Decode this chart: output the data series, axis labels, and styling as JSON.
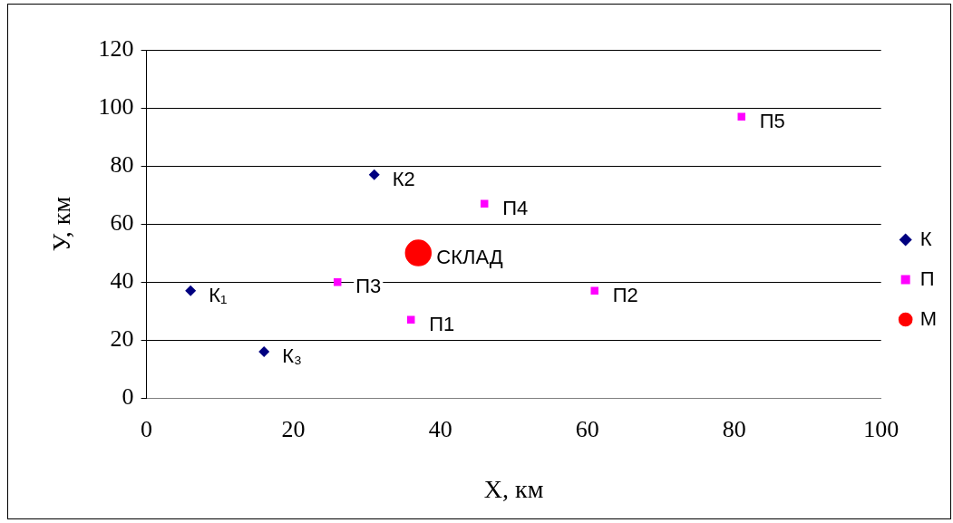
{
  "chart_data": {
    "type": "scatter",
    "xlabel": "X, км",
    "ylabel": "У, км",
    "xlim": [
      0,
      100
    ],
    "xticks": [
      0,
      20,
      40,
      60,
      80,
      100
    ],
    "ylim": [
      0,
      120
    ],
    "yticks": [
      0,
      20,
      40,
      60,
      80,
      100,
      120
    ],
    "grid": "y",
    "legend": "right",
    "series": [
      {
        "name": "К",
        "color": "#000080",
        "marker": "diamond",
        "x": [
          6,
          31,
          16
        ],
        "values": [
          37,
          77,
          16
        ]
      },
      {
        "name": "П",
        "color": "#ff00ff",
        "marker": "square",
        "x": [
          36,
          61,
          26,
          46,
          81
        ],
        "values": [
          27,
          37,
          40,
          67,
          97
        ]
      },
      {
        "name": "М",
        "type": "line",
        "color": "#ff0000",
        "marker": "circle",
        "x": [
          37
        ],
        "values": [
          50
        ]
      }
    ],
    "annotations": [
      {
        "text": "К₁",
        "x": 6,
        "y": 37
      },
      {
        "text": "К2",
        "x": 31,
        "y": 77
      },
      {
        "text": "К₃",
        "x": 16,
        "y": 16
      },
      {
        "text": "П1",
        "x": 36,
        "y": 27
      },
      {
        "text": "П2",
        "x": 61,
        "y": 37
      },
      {
        "text": "П3",
        "x": 26,
        "y": 40
      },
      {
        "text": "П4",
        "x": 46,
        "y": 67
      },
      {
        "text": "П5",
        "x": 81,
        "y": 97
      },
      {
        "text": "СКЛАД",
        "x": 37,
        "y": 50
      }
    ]
  }
}
